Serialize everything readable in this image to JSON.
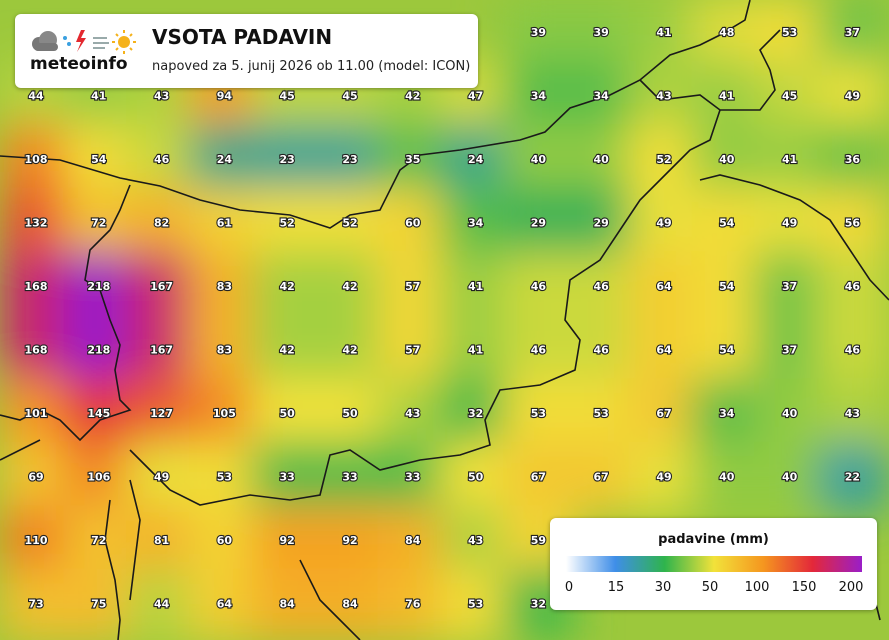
{
  "header": {
    "logo": "meteoinfo",
    "title": "VSOTA PADAVIN",
    "subtitle": "napoved za 5. junij 2026 ob 11.00 (model: ICON)"
  },
  "grid": {
    "rows": [
      [
        null,
        null,
        null,
        null,
        null,
        null,
        null,
        null,
        39,
        39,
        41,
        48,
        53,
        37
      ],
      [
        44,
        41,
        43,
        94,
        45,
        45,
        42,
        47,
        34,
        34,
        43,
        41,
        45,
        49
      ],
      [
        108,
        54,
        46,
        24,
        23,
        23,
        35,
        24,
        40,
        40,
        52,
        40,
        41,
        36
      ],
      [
        132,
        72,
        82,
        61,
        52,
        52,
        60,
        34,
        29,
        29,
        49,
        54,
        49,
        56
      ],
      [
        168,
        218,
        167,
        83,
        42,
        42,
        57,
        41,
        46,
        46,
        64,
        54,
        37,
        46
      ],
      [
        168,
        218,
        167,
        83,
        42,
        42,
        57,
        41,
        46,
        46,
        64,
        54,
        37,
        46
      ],
      [
        101,
        145,
        127,
        105,
        50,
        50,
        43,
        32,
        53,
        53,
        67,
        34,
        40,
        43
      ],
      [
        69,
        106,
        49,
        53,
        33,
        33,
        33,
        50,
        67,
        67,
        49,
        40,
        40,
        22
      ],
      [
        110,
        72,
        81,
        60,
        92,
        92,
        84,
        43,
        59,
        null,
        null,
        null,
        null,
        null
      ],
      [
        73,
        75,
        44,
        64,
        84,
        84,
        76,
        53,
        32,
        null,
        null,
        null,
        null,
        null
      ]
    ]
  },
  "legend": {
    "title": "padavine (mm)",
    "ticks": [
      0,
      15,
      30,
      50,
      100,
      150,
      200
    ],
    "colors": [
      "#ffffff",
      "#3f8ee8",
      "#2fb44c",
      "#f2e23a",
      "#f5961f",
      "#e3283a",
      "#9a1ec8"
    ]
  }
}
